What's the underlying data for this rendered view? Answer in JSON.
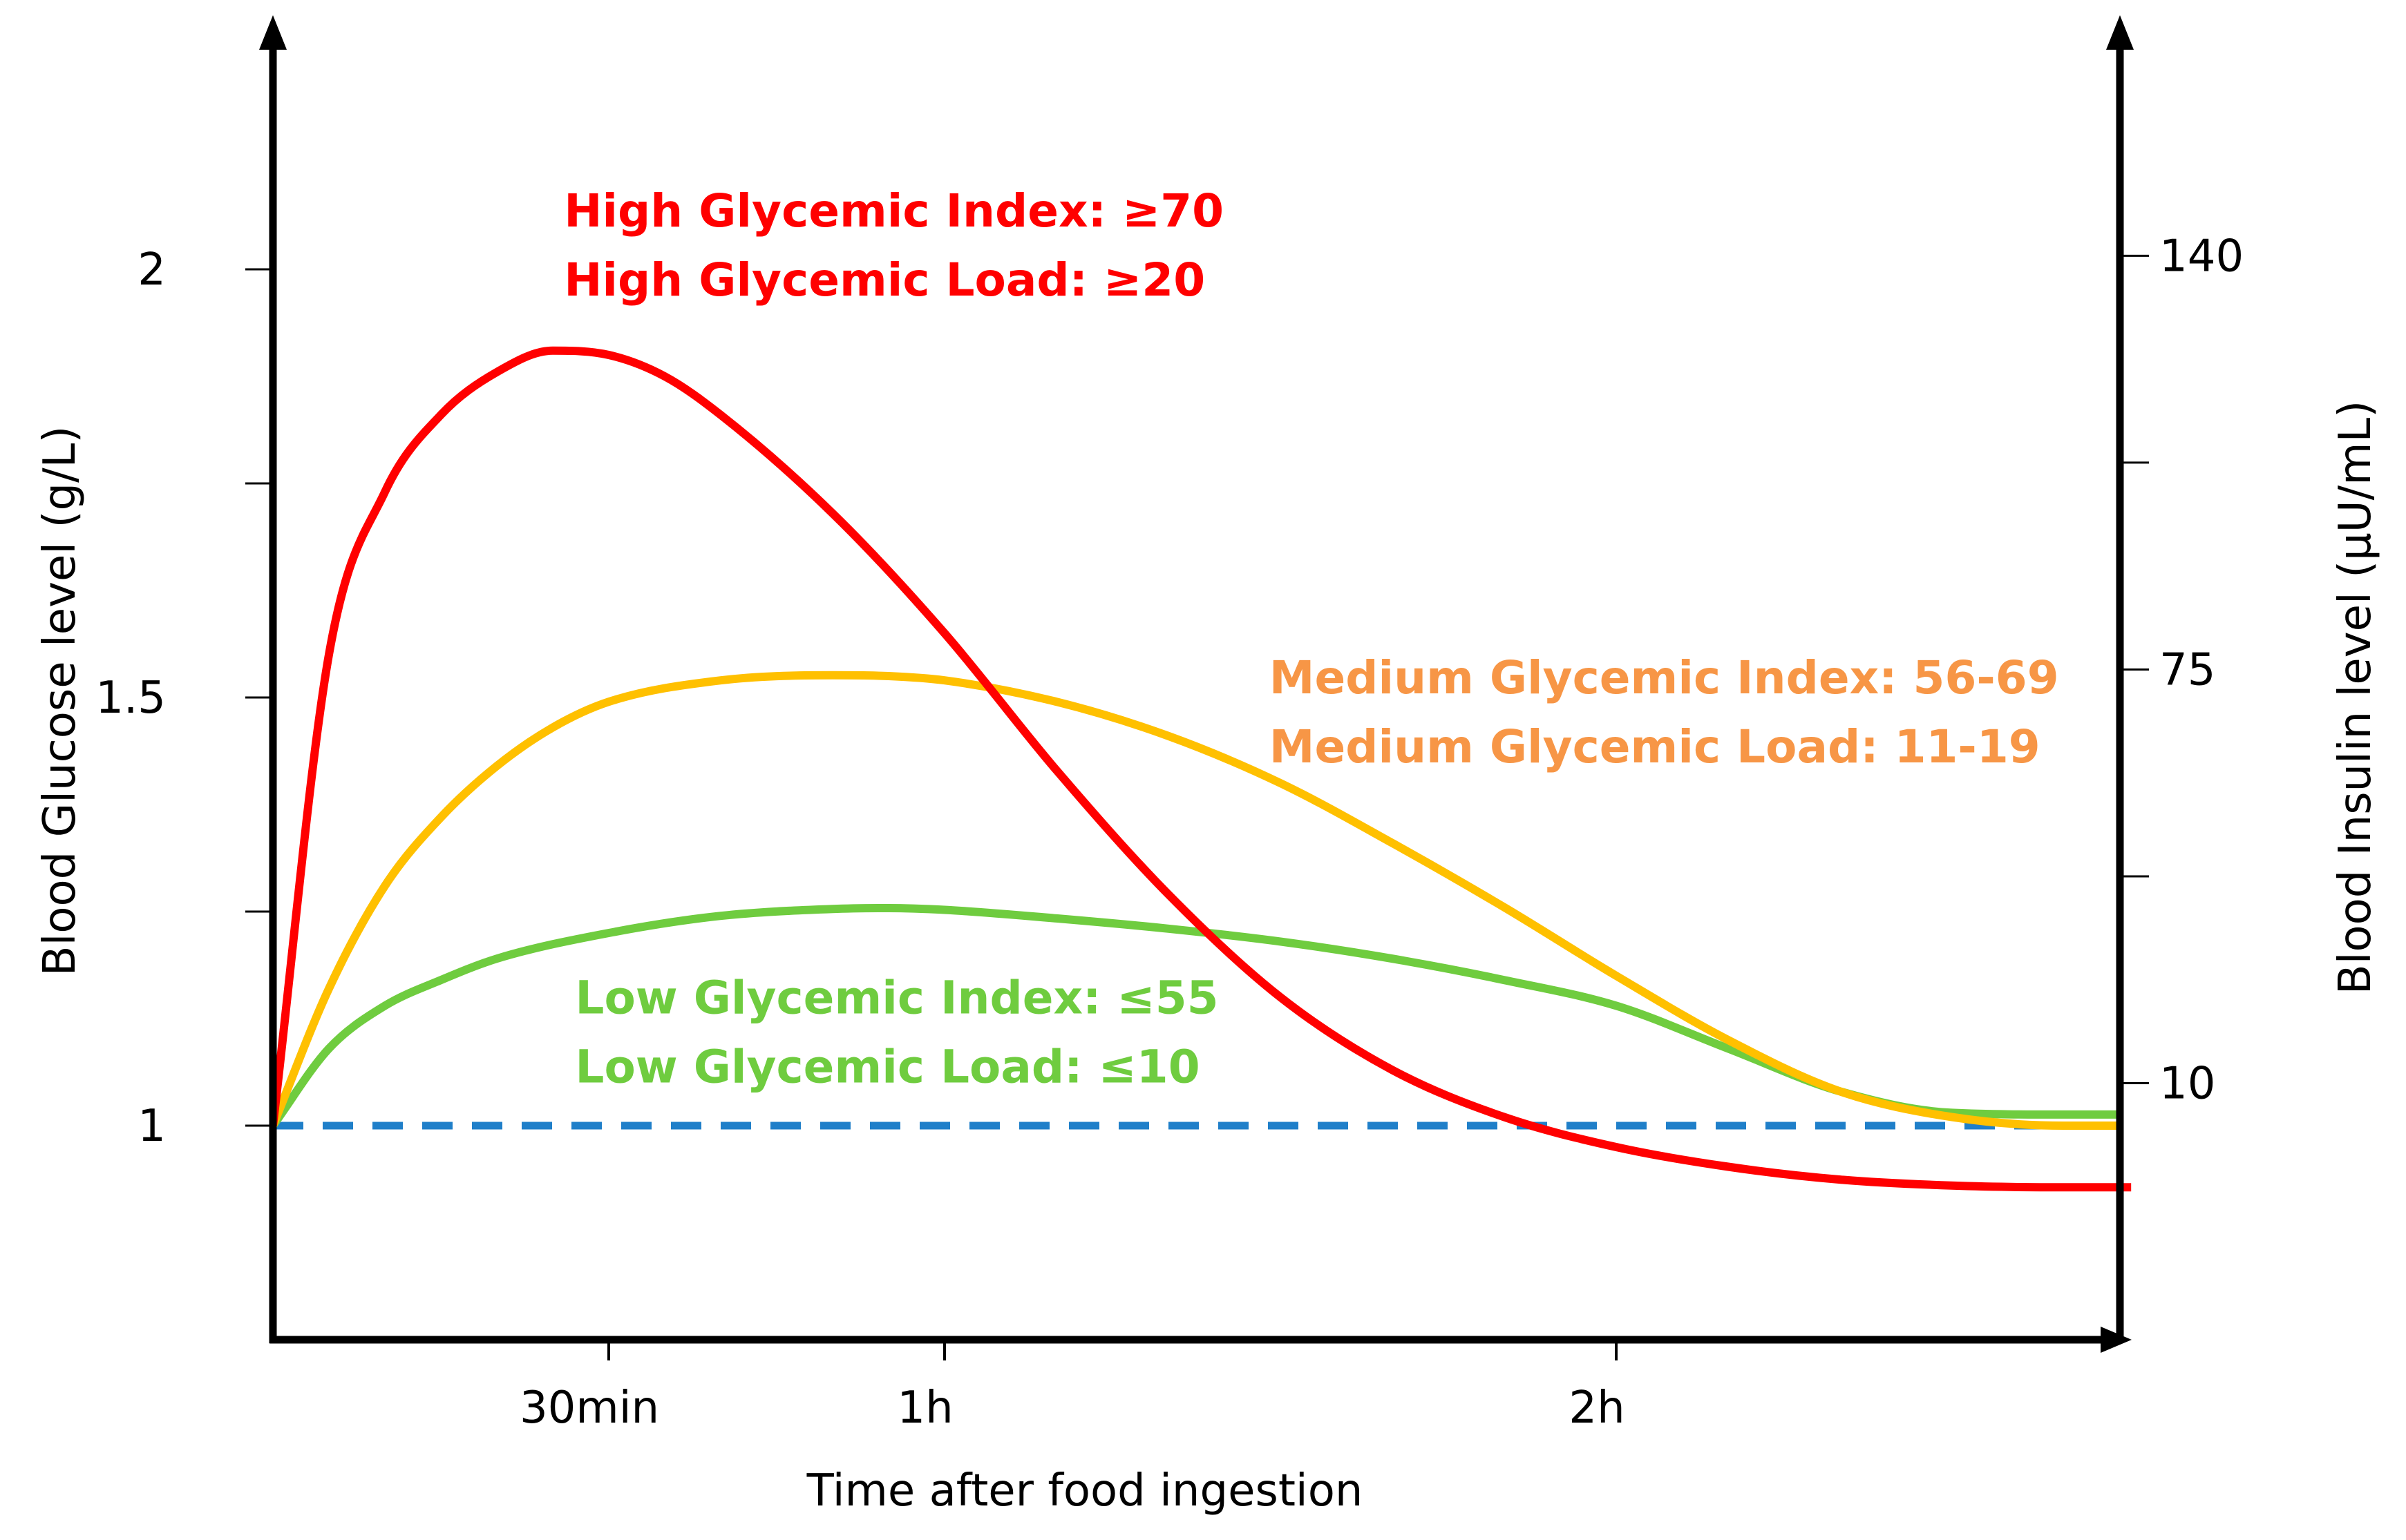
{
  "chart_data": {
    "type": "line",
    "title": "",
    "xlabel": "Time after food ingestion",
    "ylabel_left": "Blood Glucose level (g/L)",
    "ylabel_right": "Blood Insulin level (µU/mL)",
    "xlim": [
      0,
      165
    ],
    "ylim_left": [
      0.75,
      2.25
    ],
    "ylim_right": [
      -30.3,
      171.5
    ],
    "grid": false,
    "legend": "none",
    "x_ticks": [
      {
        "value": 30,
        "label": "30min"
      },
      {
        "value": 60,
        "label": "1h"
      },
      {
        "value": 120,
        "label": "2h"
      }
    ],
    "y_left_ticks": [
      {
        "value": 1,
        "label": "1"
      },
      {
        "value": 1.25,
        "label": ""
      },
      {
        "value": 1.5,
        "label": "1.5"
      },
      {
        "value": 1.75,
        "label": ""
      },
      {
        "value": 2,
        "label": "2"
      }
    ],
    "y_right_ticks": [
      {
        "value": 10,
        "label": "10"
      },
      {
        "value": 42.5,
        "label": ""
      },
      {
        "value": 75,
        "label": "75"
      },
      {
        "value": 107.5,
        "label": ""
      },
      {
        "value": 140,
        "label": "140"
      }
    ],
    "baseline": {
      "name": "Baseline",
      "y": 1.0,
      "color": "#1f7fc9",
      "style": "dashed"
    },
    "series": [
      {
        "name": "High Glycemic",
        "color": "#ff0000",
        "labels": [
          "High Glycemic Index: ≥70",
          "High Glycemic Load: ≥20"
        ],
        "label_anchor": {
          "x": 26,
          "y": 2.05
        },
        "x": [
          0,
          5,
          10,
          15,
          20,
          25,
          30,
          35,
          40,
          50,
          60,
          70,
          80,
          90,
          100,
          110,
          120,
          130,
          140,
          150,
          160,
          166
        ],
        "y": [
          1.0,
          1.55,
          1.74,
          1.83,
          1.88,
          1.905,
          1.9,
          1.875,
          1.83,
          1.715,
          1.575,
          1.415,
          1.27,
          1.15,
          1.065,
          1.01,
          0.975,
          0.952,
          0.937,
          0.93,
          0.928,
          0.928
        ]
      },
      {
        "name": "Medium Glycemic",
        "color": "#ffc000",
        "labels": [
          "Medium Glycemic Index: 56-69",
          "Medium Glycemic Load: 11-19"
        ],
        "label_anchor": {
          "x": 89,
          "y": 1.505
        },
        "x": [
          0,
          5,
          10,
          15,
          20,
          25,
          30,
          40,
          50,
          55,
          60,
          70,
          80,
          90,
          100,
          110,
          120,
          130,
          140,
          150,
          160,
          165
        ],
        "y": [
          1.0,
          1.16,
          1.28,
          1.36,
          1.42,
          1.465,
          1.495,
          1.52,
          1.526,
          1.525,
          1.52,
          1.495,
          1.455,
          1.4,
          1.33,
          1.255,
          1.175,
          1.1,
          1.04,
          1.01,
          1.0,
          1.0
        ]
      },
      {
        "name": "Low Glycemic",
        "color": "#6fcc3f",
        "labels": [
          "Low Glycemic Index: ≤55",
          "Low Glycemic Load: ≤10"
        ],
        "label_anchor": {
          "x": 27,
          "y": 1.131
        },
        "x": [
          0,
          5,
          10,
          15,
          20,
          30,
          40,
          50,
          55,
          60,
          70,
          80,
          90,
          100,
          110,
          120,
          130,
          140,
          150,
          160,
          165
        ],
        "y": [
          1.0,
          1.09,
          1.14,
          1.17,
          1.195,
          1.225,
          1.245,
          1.253,
          1.254,
          1.252,
          1.242,
          1.23,
          1.215,
          1.195,
          1.17,
          1.14,
          1.09,
          1.04,
          1.015,
          1.013,
          1.013
        ]
      }
    ]
  }
}
